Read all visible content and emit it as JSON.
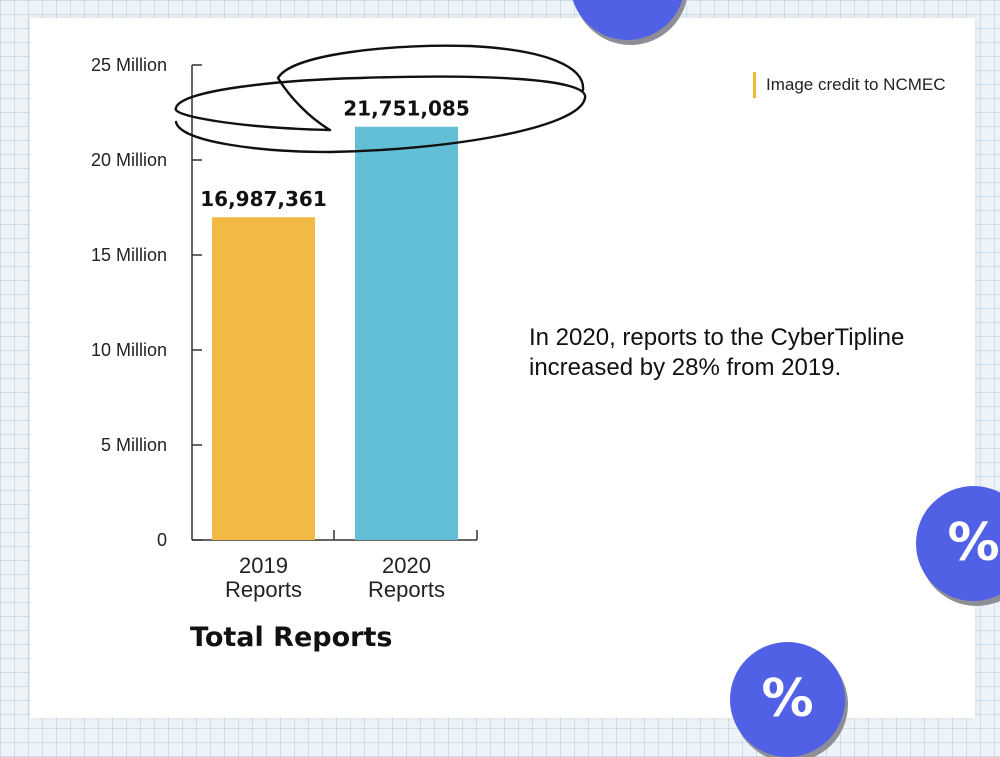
{
  "chart_data": {
    "type": "bar",
    "categories": [
      "2019 Reports",
      "2020 Reports"
    ],
    "category_lines": [
      [
        "2019",
        "Reports"
      ],
      [
        "2020",
        "Reports"
      ]
    ],
    "values": [
      16987361,
      21751085
    ],
    "value_labels": [
      "16,987,361",
      "21,751,085"
    ],
    "colors": [
      "#f2b943",
      "#63bfd6"
    ],
    "xlabel": "Total Reports",
    "ylabel": "",
    "ylim": [
      0,
      25000000
    ],
    "yticks": [
      0,
      5000000,
      10000000,
      15000000,
      20000000,
      25000000
    ],
    "ytick_labels": [
      "0",
      "5 Million",
      "10 Million",
      "15 Million",
      "20 Million",
      "25 Million"
    ],
    "grid": false,
    "annotation": "hand-drawn ellipse circling the 2020 value"
  },
  "credit": "Image credit to NCMEC",
  "note": "In 2020, reports to the CyberTipline increased by 28% from 2019.",
  "badges": {
    "percent_symbol": "%"
  },
  "colors": {
    "accent_bar": "#f0b93c",
    "badge": "#5161e6"
  }
}
